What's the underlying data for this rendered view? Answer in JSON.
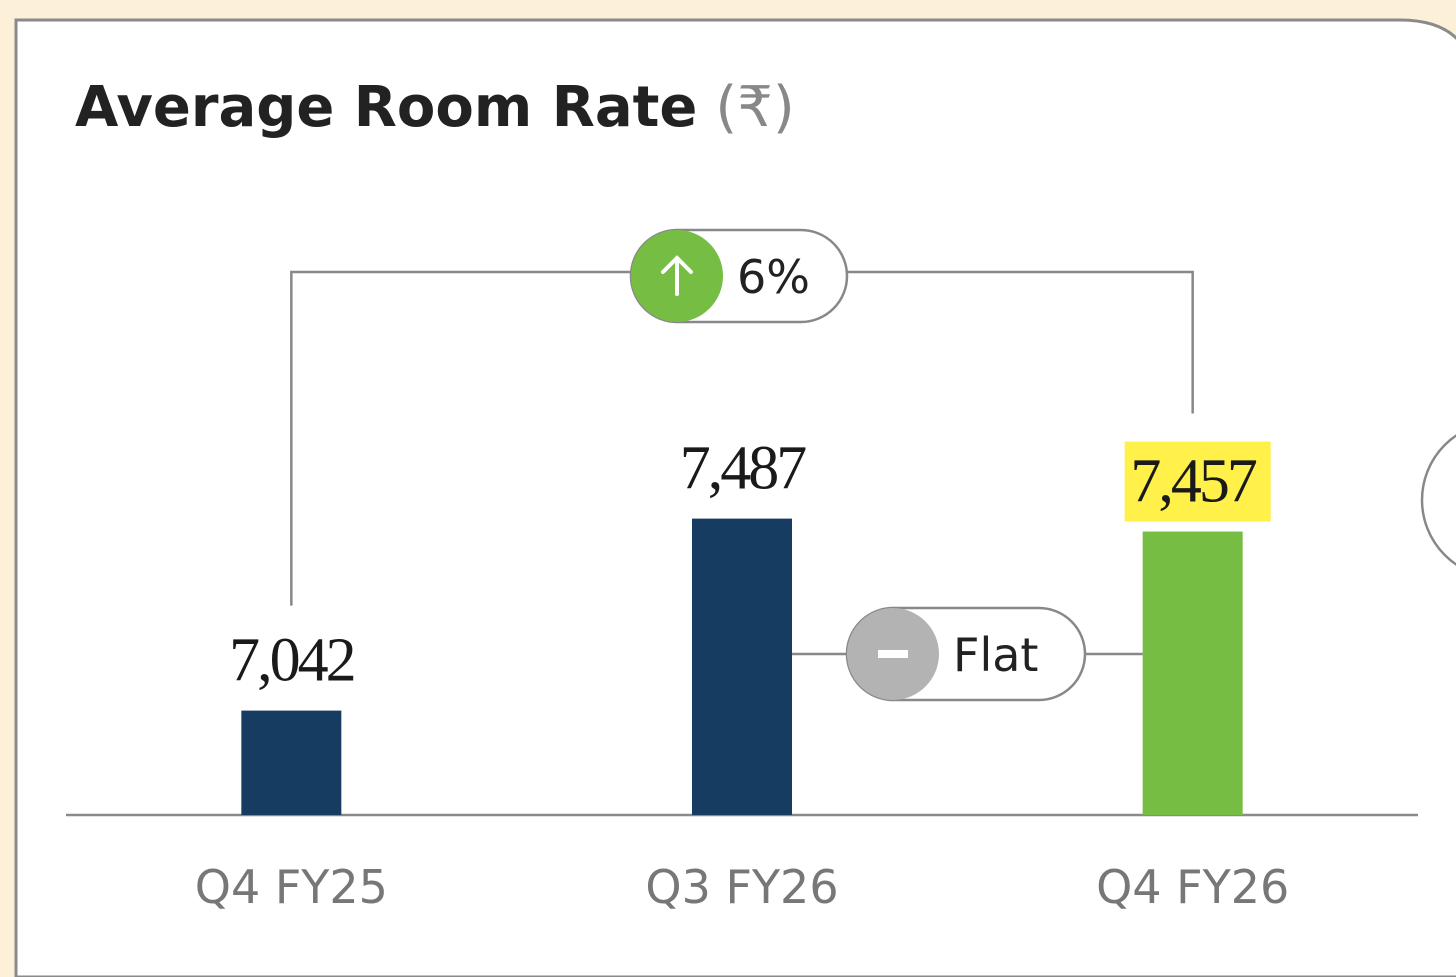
{
  "chart_data": {
    "type": "bar",
    "title": "Average Room Rate",
    "unit": "(₹)",
    "categories": [
      "Q4 FY25",
      "Q3 FY26",
      "Q4 FY26"
    ],
    "values": [
      7042,
      7487,
      7457
    ],
    "value_labels": [
      "7,042",
      "7,487",
      "7,457"
    ],
    "colors": [
      "#163d61",
      "#163d61",
      "#76bd43"
    ],
    "ylim": [
      6800,
      7500
    ],
    "annotations": [
      {
        "text": "6%",
        "direction": "up",
        "between": [
          "Q4 FY25",
          "Q4 FY26"
        ],
        "color": "#76bd43"
      },
      {
        "text": "Flat",
        "direction": "flat",
        "between": [
          "Q3 FY26",
          "Q4 FY26"
        ],
        "color": "#b3b3b3"
      }
    ]
  }
}
